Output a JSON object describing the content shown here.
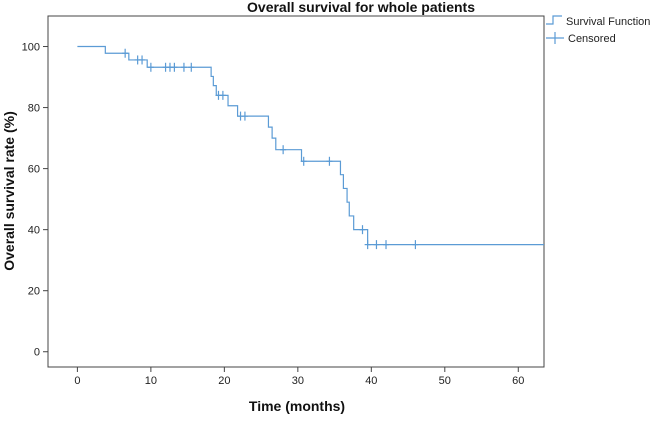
{
  "chart_data": {
    "type": "line",
    "title": "Overall survival for whole patients",
    "xlabel": "Time (months)",
    "ylabel": "Overall survival rate (%)",
    "xlim": [
      -4,
      63.5
    ],
    "ylim": [
      -5,
      110
    ],
    "xticks": [
      0,
      10,
      20,
      30,
      40,
      50,
      60
    ],
    "yticks": [
      0,
      20,
      40,
      60,
      80,
      100
    ],
    "grid": false,
    "legend_position": "top-right",
    "series": [
      {
        "name": "Survival Function",
        "style": "step",
        "color": "#5b9bd5",
        "points": [
          [
            0,
            100
          ],
          [
            3.8,
            100
          ],
          [
            3.8,
            97.8
          ],
          [
            6.5,
            97.8
          ],
          [
            7,
            97.8
          ],
          [
            7,
            95.6
          ],
          [
            9.5,
            95.6
          ],
          [
            9.5,
            93.2
          ],
          [
            18.2,
            93.2
          ],
          [
            18.2,
            90.2
          ],
          [
            18.5,
            90.2
          ],
          [
            18.5,
            87.2
          ],
          [
            18.9,
            87.2
          ],
          [
            18.9,
            84.0
          ],
          [
            20.5,
            84.0
          ],
          [
            20.5,
            80.6
          ],
          [
            21.8,
            80.6
          ],
          [
            21.8,
            77.2
          ],
          [
            26.0,
            77.2
          ],
          [
            26.0,
            73.6
          ],
          [
            26.5,
            73.6
          ],
          [
            26.5,
            70.0
          ],
          [
            27.0,
            70.0
          ],
          [
            27.0,
            66.2
          ],
          [
            30.5,
            66.2
          ],
          [
            30.5,
            62.4
          ],
          [
            35.8,
            62.4
          ],
          [
            35.8,
            58.0
          ],
          [
            36.2,
            58.0
          ],
          [
            36.2,
            53.5
          ],
          [
            36.7,
            53.5
          ],
          [
            36.7,
            49.0
          ],
          [
            37.0,
            49.0
          ],
          [
            37.0,
            44.5
          ],
          [
            37.6,
            44.5
          ],
          [
            37.6,
            40.0
          ],
          [
            39.5,
            40.0
          ],
          [
            39.5,
            35.1
          ],
          [
            63.5,
            35.1
          ]
        ]
      },
      {
        "name": "Censored",
        "style": "marker",
        "marker": "+",
        "color": "#5b9bd5",
        "points": [
          [
            6.5,
            97.8
          ],
          [
            8.2,
            95.6
          ],
          [
            8.8,
            95.6
          ],
          [
            10.0,
            93.2
          ],
          [
            12.0,
            93.2
          ],
          [
            12.6,
            93.2
          ],
          [
            13.2,
            93.2
          ],
          [
            14.5,
            93.2
          ],
          [
            15.5,
            93.2
          ],
          [
            19.2,
            84.0
          ],
          [
            19.8,
            84.0
          ],
          [
            22.2,
            77.2
          ],
          [
            22.8,
            77.2
          ],
          [
            28.0,
            66.2
          ],
          [
            30.8,
            62.4
          ],
          [
            34.3,
            62.4
          ],
          [
            38.8,
            40.0
          ],
          [
            39.5,
            35.1
          ],
          [
            40.7,
            35.1
          ],
          [
            42.0,
            35.1
          ],
          [
            46.0,
            35.1
          ]
        ]
      }
    ]
  }
}
